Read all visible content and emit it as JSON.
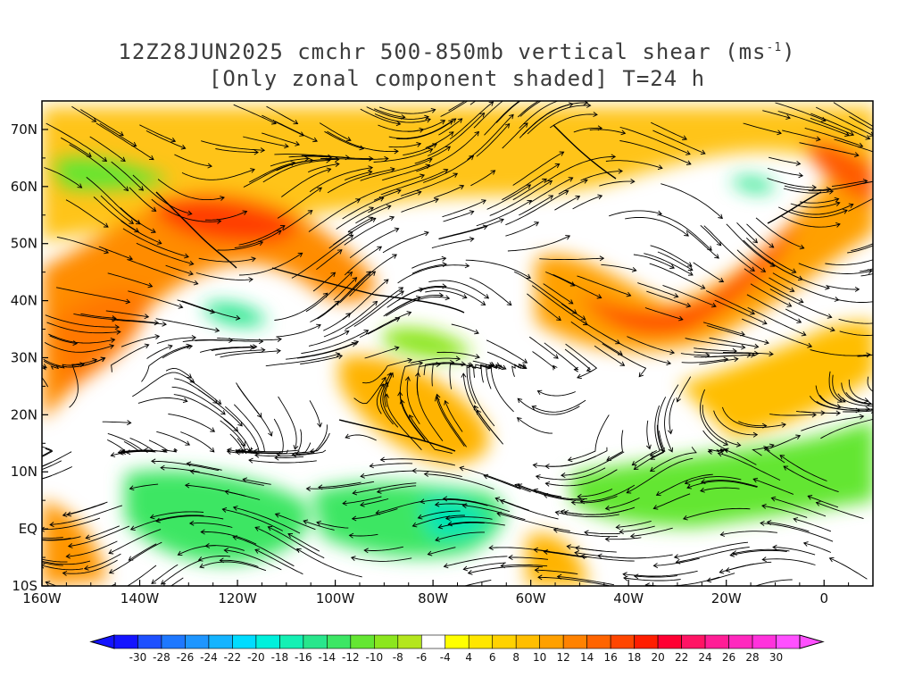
{
  "title": {
    "line1_prefix": "12Z28JUN2025 cmchr 500-850mb vertical shear (ms",
    "line1_sup": "-1",
    "line1_suffix": ")",
    "line2": "[Only zonal component shaded] T=24 h"
  },
  "map": {
    "lon_range": [
      -160,
      10
    ],
    "lat_range": [
      -10,
      75
    ],
    "lat_labels": [
      "70N",
      "60N",
      "50N",
      "40N",
      "30N",
      "20N",
      "10N",
      "EQ",
      "10S"
    ],
    "lon_labels": [
      "160W",
      "140W",
      "120W",
      "100W",
      "80W",
      "60W",
      "40W",
      "20W",
      "0"
    ],
    "features": [
      {
        "type": "jet",
        "desc": "strong positive shear NE Pacific to NW America",
        "value": 18
      },
      {
        "type": "jet",
        "desc": "strong positive shear central Atlantic",
        "value": 20
      },
      {
        "type": "easterly",
        "desc": "negative shear tropical Pacific",
        "value": -12
      },
      {
        "type": "easterly",
        "desc": "negative shear Caribbean / tropical Atlantic",
        "value": -12
      }
    ]
  },
  "colorbar": {
    "ticks": [
      "-30",
      "-28",
      "-26",
      "-24",
      "-22",
      "-20",
      "-18",
      "-16",
      "-14",
      "-12",
      "-10",
      "-8",
      "-6",
      "-4",
      "4",
      "6",
      "8",
      "10",
      "12",
      "14",
      "16",
      "18",
      "20",
      "22",
      "24",
      "26",
      "28",
      "30"
    ],
    "colors": [
      "#1414ff",
      "#1e50ff",
      "#1e78ff",
      "#1e96ff",
      "#14b4ff",
      "#00dcff",
      "#00f0dc",
      "#14f0b4",
      "#28e68c",
      "#3ce664",
      "#64e632",
      "#8ce61e",
      "#b4e61e",
      "#ffffff",
      "#ffff00",
      "#ffe600",
      "#ffd200",
      "#ffbe00",
      "#ffa000",
      "#ff8200",
      "#ff6400",
      "#ff4600",
      "#ff1e00",
      "#ff0032",
      "#ff1464",
      "#ff1e96",
      "#ff28be",
      "#ff32dc",
      "#ff50ff"
    ]
  }
}
